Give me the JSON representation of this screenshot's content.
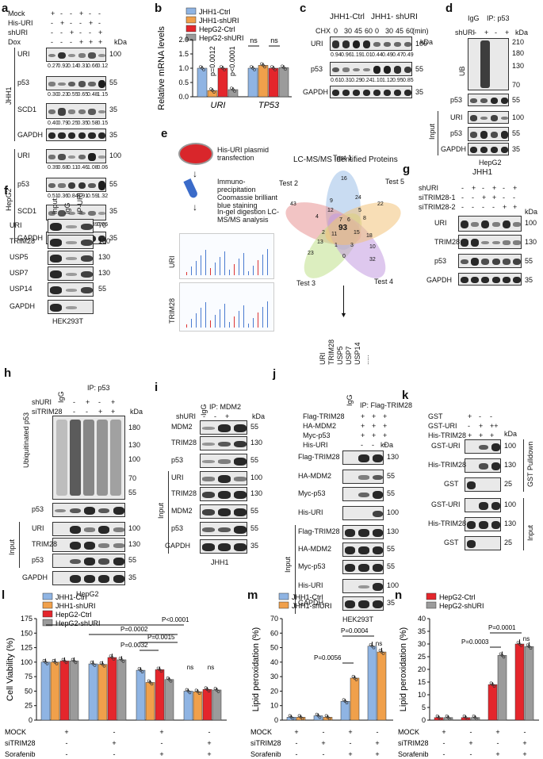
{
  "panels": {
    "a": {
      "label": "a",
      "conds": [
        "Mock",
        "His-URI",
        "shURI",
        "Dox"
      ],
      "cond_values": [
        [
          "+",
          "-",
          "-",
          "+",
          "-",
          "-"
        ],
        [
          "-",
          "+",
          "-",
          "-",
          "+",
          "-"
        ],
        [
          "-",
          "-",
          "+",
          "-",
          "-",
          "+"
        ],
        [
          "-",
          "-",
          "-",
          "+",
          "+",
          "+"
        ]
      ],
      "kda": "kDa",
      "cells": [
        "JHH1",
        "HepG2"
      ],
      "jhh1": {
        "uri": "URI",
        "uri_q": [
          "0.27",
          "0.92",
          "0.14",
          "0.31",
          "0.66",
          "0.12"
        ],
        "p53": "p53",
        "p53_q": [
          "0.30",
          "0.23",
          "0.55",
          "0.65",
          "0.48",
          "1.15"
        ],
        "scd1": "SCD1",
        "scd1_q": [
          "0.40",
          "0.79",
          "0.25",
          "0.35",
          "0.58",
          "0.15"
        ],
        "gapdh": "GAPDH"
      },
      "hepg2": {
        "uri": "URI",
        "uri_q": [
          "0.39",
          "0.68",
          "0.11",
          "0.46",
          "1.08",
          "0.06"
        ],
        "p53": "p53",
        "p53_q": [
          "0.51",
          "0.36",
          "0.84",
          "0.91",
          "0.59",
          "1.32"
        ],
        "scd1": "SCD1",
        "scd1_q": [
          "0.31",
          "0.66",
          "0.17",
          "0.21",
          "0.39",
          "0.06"
        ],
        "gapdh": "GAPDH"
      },
      "mw": [
        "100",
        "55",
        "35",
        "35",
        "100",
        "55",
        "35",
        "35"
      ]
    },
    "b": {
      "label": "b",
      "legend": [
        "JHH1-Ctrl",
        "JHH1-shURI",
        "HepG2-Ctrl",
        "HepG2-shURI"
      ],
      "ylabel": "Relative mRNA levels",
      "genes": [
        "URI",
        "TP53"
      ],
      "pvals": [
        "p=0.0012",
        "p<0.0001"
      ],
      "ns": [
        "ns",
        "ns"
      ],
      "yticks": [
        "0.0",
        "0.5",
        "1.0",
        "1.5",
        "2.0"
      ]
    },
    "c": {
      "label": "c",
      "groups": [
        "JHH1-Ctrl",
        "JHH1- shURI"
      ],
      "chx": "CHX",
      "times": [
        "0",
        "30",
        "45",
        "60",
        "0",
        "30",
        "45",
        "60"
      ],
      "unit": "(min)",
      "kda": "kDa",
      "uri": "URI",
      "uri_q": [
        "0.94",
        "0.96",
        "1.19",
        "1.01",
        "0.44",
        "0.49",
        "0.47",
        "0.49"
      ],
      "p53": "p53",
      "p53_q": [
        "0.61",
        "0.31",
        "0.29",
        "0.24",
        "1.10",
        "1.12",
        "0.95",
        "0.85"
      ],
      "gapdh": "GAPDH",
      "mw": [
        "100",
        "55",
        "35"
      ]
    },
    "d": {
      "label": "d",
      "igg": "IgG",
      "ip": "IP: p53",
      "shuri": "shURI",
      "signs": [
        "-",
        "+",
        "-",
        "+"
      ],
      "kda": "kDa",
      "ub": "UB",
      "p53": "p53",
      "input": "Input",
      "uri": "URI",
      "p53b": "p53",
      "gapdh": "GAPDH",
      "cell": "HepG2",
      "mw": [
        "210",
        "180",
        "130",
        "70",
        "55",
        "100",
        "55",
        "35"
      ]
    },
    "e": {
      "label": "e",
      "steps": [
        "His-URI plasmid transfection",
        "Immuno-precipitation Coomassie brilliant blue staining",
        "In-gel digestion LC-MS/MS analysis"
      ],
      "spec": [
        "URI",
        "TRIM28"
      ],
      "title": "LC-MS/MS Identified Proteins",
      "tests": [
        "Test 1",
        "Test 2",
        "Test 3",
        "Test 4",
        "Test 5"
      ],
      "center": "93",
      "proteins": [
        "URI",
        "TRIM28",
        "USP5",
        "USP7",
        "USP14",
        "....."
      ],
      "nums": [
        "16",
        "43",
        "22",
        "23",
        "32",
        "9",
        "24",
        "4",
        "8",
        "12",
        "5",
        "1",
        "3",
        "2",
        "18",
        "7",
        "6",
        "11",
        "15",
        "0",
        "13",
        "10"
      ]
    },
    "f": {
      "label": "f",
      "lanes": [
        "Input",
        "IgG",
        "IP-URI"
      ],
      "rows": [
        "URI",
        "TRIM28",
        "USP5",
        "USP7",
        "USP14",
        "GAPDH"
      ],
      "mw": [
        "70",
        "130",
        "130",
        "130",
        "55"
      ],
      "cell": "HEK293T"
    },
    "g": {
      "label": "g",
      "cell": "JHH1",
      "conds": [
        "shURI",
        "siTRIM28-1",
        "siTRIM28-2"
      ],
      "signs": [
        [
          "-",
          "+",
          "-",
          "+",
          "-",
          "+"
        ],
        [
          "-",
          "-",
          "+",
          "+",
          "-",
          "-"
        ],
        [
          "-",
          "-",
          "-",
          "-",
          "+",
          "+"
        ]
      ],
      "kda": "kDa",
      "rows": [
        "URI",
        "TRIM28",
        "p53",
        "GAPDH"
      ],
      "mw": [
        "100",
        "130",
        "55",
        "35"
      ]
    },
    "h": {
      "label": "h",
      "igg": "IgG",
      "ip": "IP: p53",
      "conds": [
        "shURI",
        "siTRIM28"
      ],
      "signs": [
        [
          "-",
          "+",
          "-",
          "+"
        ],
        [
          "-",
          "-",
          "+",
          "+"
        ]
      ],
      "kda": "kDa",
      "ub": "Ubiquitinated p53",
      "rows": [
        "p53",
        "URI",
        "TRIM28",
        "p53",
        "GAPDH"
      ],
      "input": "Input",
      "cell": "HepG2",
      "mw": [
        "180",
        "130",
        "100",
        "70",
        "55",
        "100",
        "130",
        "55",
        "35"
      ]
    },
    "i": {
      "label": "i",
      "igg": "IgG",
      "ip": "IP: MDM2",
      "shuri": "shURI",
      "signs": [
        "-",
        "-",
        "+"
      ],
      "kda": "kDa",
      "rows": [
        "MDM2",
        "TRIM28",
        "p53",
        "URI",
        "TRIM28",
        "MDM2",
        "p53",
        "GAPDH"
      ],
      "input": "Input",
      "cell": "JHH1",
      "mw": [
        "55",
        "130",
        "55",
        "100",
        "130",
        "55",
        "55",
        "35"
      ]
    },
    "j": {
      "label": "j",
      "igg": "IgG",
      "ip": "IP: Flag-TRIM28",
      "conds": [
        "Flag-TRIM28",
        "HA-MDM2",
        "Myc-p53",
        "His-URI"
      ],
      "signs": [
        [
          "+",
          "+",
          "+"
        ],
        [
          "+",
          "+",
          "+"
        ],
        [
          "+",
          "+",
          "+"
        ],
        [
          "-",
          "-",
          "+"
        ]
      ],
      "kda": "kDa",
      "rows": [
        "Flag-TRIM28",
        "HA-MDM2",
        "Myc-p53",
        "His-URI",
        "Flag-TRIM28",
        "HA-MDM2",
        "Myc-p53",
        "His-URI",
        "GAPDH"
      ],
      "input": "Input",
      "cell": "HEK293T",
      "mw": [
        "130",
        "55",
        "55",
        "100",
        "130",
        "55",
        "55",
        "100",
        "35"
      ]
    },
    "k": {
      "label": "k",
      "conds": [
        "GST",
        "GST-URI",
        "His-TRIM28"
      ],
      "signs": [
        [
          "+",
          "-",
          "-"
        ],
        [
          "-",
          "+",
          "++"
        ],
        [
          "+",
          "+",
          "+"
        ]
      ],
      "kda": "kDa",
      "rows": [
        "GST-URI",
        "His-TRIM28",
        "GST",
        "GST-URI",
        "His-TRIM28",
        "GST"
      ],
      "side": [
        "GST Pulldown",
        "Input"
      ],
      "mw": [
        "100",
        "130",
        "25",
        "100",
        "130",
        "25"
      ]
    },
    "l": {
      "label": "l",
      "legend": [
        "JHH1-Ctrl",
        "JHH1-shURI",
        "HepG2-Ctrl",
        "HepG2-shURI"
      ],
      "ylabel": "Cell Viability (%)",
      "yticks": [
        "0",
        "25",
        "50",
        "75",
        "100",
        "125",
        "150",
        "175"
      ],
      "pvals": [
        "P=0.0032",
        "P=0.0015",
        "P=0.0002",
        "P<0.0001"
      ],
      "ns": [
        "ns",
        "ns"
      ],
      "conds": [
        "MOCK",
        "siTRIM28",
        "Sorafenib"
      ],
      "signs": [
        [
          "+",
          "-",
          "+",
          "-"
        ],
        [
          "-",
          "+",
          "-",
          "+"
        ],
        [
          "-",
          "-",
          "+",
          "+"
        ]
      ]
    },
    "m": {
      "label": "m",
      "legend": [
        "JHH1-Ctrl",
        "JHH1-shURI"
      ],
      "ylabel": "Lipid peroxidation (%)",
      "yticks": [
        "0",
        "10",
        "20",
        "30",
        "40",
        "50",
        "60",
        "70"
      ],
      "pvals": [
        "P=0.0056",
        "P=0.0004"
      ],
      "ns": "ns",
      "conds": [
        "MOCK",
        "siTRIM28",
        "Sorafenib"
      ],
      "signs": [
        [
          "+",
          "-",
          "+",
          "-"
        ],
        [
          "-",
          "+",
          "-",
          "+"
        ],
        [
          "-",
          "-",
          "+",
          "+"
        ]
      ]
    },
    "n": {
      "label": "n",
      "legend": [
        "HepG2-Ctrl",
        "HepG2-shURI"
      ],
      "ylabel": "Lipid peroxidation (%)",
      "yticks": [
        "0",
        "5",
        "10",
        "15",
        "20",
        "25",
        "30",
        "35",
        "40"
      ],
      "pvals": [
        "P=0.0003",
        "P=0.0001"
      ],
      "ns": "ns",
      "conds": [
        "MOCK",
        "siTRIM28",
        "Sorafenib"
      ],
      "signs": [
        [
          "+",
          "-",
          "+",
          "-"
        ],
        [
          "-",
          "+",
          "-",
          "+"
        ],
        [
          "-",
          "-",
          "+",
          "+"
        ]
      ]
    }
  },
  "colors": {
    "blue": "#8fb4e3",
    "orange": "#f0a04b",
    "red": "#e4262c",
    "grey": "#9b9b9b"
  },
  "chart_data": [
    {
      "type": "bar",
      "panel": "b",
      "categories": [
        "URI",
        "TP53"
      ],
      "series": [
        {
          "name": "JHH1-Ctrl",
          "values": [
            1.0,
            1.0
          ]
        },
        {
          "name": "JHH1-shURI",
          "values": [
            0.22,
            1.1
          ]
        },
        {
          "name": "HepG2-Ctrl",
          "values": [
            1.0,
            1.0
          ]
        },
        {
          "name": "HepG2-shURI",
          "values": [
            0.25,
            1.02
          ]
        }
      ],
      "ylim": [
        0,
        2.0
      ]
    },
    {
      "type": "bar",
      "panel": "l",
      "categories": [
        "MOCK",
        "siTRIM28",
        "Sorafenib",
        "siTRIM28+Sorafenib"
      ],
      "series": [
        {
          "name": "JHH1-Ctrl",
          "values": [
            100,
            97,
            86,
            50
          ]
        },
        {
          "name": "JHH1-shURI",
          "values": [
            100,
            96,
            65,
            49
          ]
        },
        {
          "name": "HepG2-Ctrl",
          "values": [
            102,
            108,
            87,
            53
          ]
        },
        {
          "name": "HepG2-shURI",
          "values": [
            102,
            104,
            70,
            52
          ]
        }
      ],
      "ylim": [
        0,
        175
      ]
    },
    {
      "type": "bar",
      "panel": "m",
      "categories": [
        "MOCK",
        "siTRIM28",
        "Sorafenib",
        "siTRIM28+Sorafenib"
      ],
      "series": [
        {
          "name": "JHH1-Ctrl",
          "values": [
            2,
            3,
            13,
            51
          ]
        },
        {
          "name": "JHH1-shURI",
          "values": [
            2,
            2,
            29,
            47
          ]
        }
      ],
      "ylim": [
        0,
        70
      ]
    },
    {
      "type": "bar",
      "panel": "n",
      "categories": [
        "MOCK",
        "siTRIM28",
        "Sorafenib",
        "siTRIM28+Sorafenib"
      ],
      "series": [
        {
          "name": "HepG2-Ctrl",
          "values": [
            1,
            1,
            14,
            30
          ]
        },
        {
          "name": "HepG2-shURI",
          "values": [
            1,
            1,
            25.5,
            29
          ]
        }
      ],
      "ylim": [
        0,
        40
      ]
    }
  ]
}
